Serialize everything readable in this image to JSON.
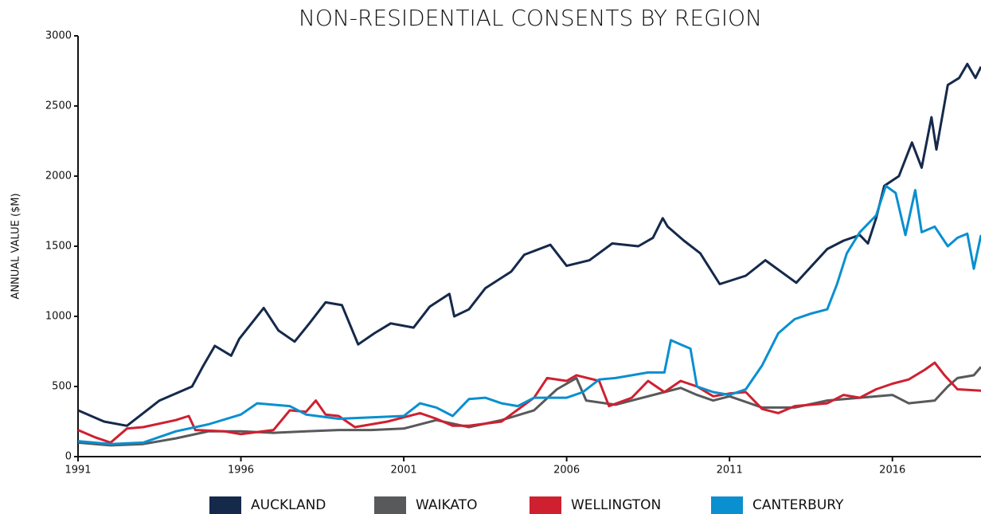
{
  "chart_data": {
    "type": "line",
    "title": "NON-RESIDENTIAL CONSENTS BY REGION",
    "y_label": "ANNUAL VALUE ($M)",
    "legend": "bottom",
    "xlim": [
      1991,
      2018.72
    ],
    "xticks": [
      1991,
      1996,
      2001,
      2006,
      2011,
      2016
    ],
    "ylim": [
      0,
      3000
    ],
    "yticks": [
      0,
      500,
      1000,
      1500,
      2000,
      2500,
      3000
    ],
    "series": [
      {
        "name": "AUCKLAND",
        "color": "#15294b",
        "x": [
          1991,
          1991.8,
          1992.5,
          1993.5,
          1994.5,
          1994.85,
          1995.2,
          1995.7,
          1995.95,
          1996.7,
          1997.15,
          1997.65,
          1998.1,
          1998.6,
          1999.1,
          1999.6,
          2000.1,
          2000.6,
          2001.3,
          2001.8,
          2002.4,
          2002.55,
          2003.0,
          2003.5,
          2004.3,
          2004.7,
          2005.5,
          2006.0,
          2006.7,
          2007.4,
          2008.2,
          2008.65,
          2008.95,
          2009.1,
          2009.6,
          2010.1,
          2010.7,
          2011.5,
          2012.1,
          2013.05,
          2014.0,
          2014.5,
          2015.0,
          2015.25,
          2015.5,
          2015.75,
          2016.2,
          2016.6,
          2016.9,
          2017.2,
          2017.35,
          2017.7,
          2018.05,
          2018.3,
          2018.55,
          2018.72
        ],
        "values": [
          330,
          250,
          220,
          400,
          500,
          650,
          790,
          720,
          840,
          1060,
          900,
          820,
          950,
          1100,
          1080,
          800,
          880,
          950,
          920,
          1070,
          1160,
          1000,
          1050,
          1200,
          1320,
          1440,
          1510,
          1360,
          1400,
          1520,
          1500,
          1560,
          1700,
          1640,
          1540,
          1450,
          1230,
          1290,
          1400,
          1240,
          1480,
          1540,
          1580,
          1520,
          1700,
          1930,
          2000,
          2240,
          2060,
          2420,
          2190,
          2650,
          2700,
          2800,
          2700,
          2780
        ]
      },
      {
        "name": "WAIKATO",
        "color": "#58595b",
        "x": [
          1991,
          1992,
          1993,
          1994,
          1995,
          1996,
          1997,
          1998,
          1999,
          2000,
          2001,
          2002,
          2003,
          2004,
          2005,
          2005.7,
          2006.3,
          2006.6,
          2007.5,
          2008,
          2009,
          2009.5,
          2010,
          2010.5,
          2011,
          2012,
          2013,
          2014,
          2015,
          2016,
          2016.5,
          2017.3,
          2017.7,
          2018,
          2018.5,
          2018.72
        ],
        "values": [
          100,
          80,
          90,
          130,
          180,
          180,
          170,
          180,
          190,
          190,
          200,
          260,
          210,
          260,
          330,
          480,
          560,
          400,
          370,
          400,
          460,
          490,
          440,
          400,
          430,
          350,
          350,
          400,
          420,
          440,
          380,
          400,
          500,
          560,
          580,
          640
        ]
      },
      {
        "name": "WELLINGTON",
        "color": "#cf2030",
        "x": [
          1991,
          1991.5,
          1992,
          1992.5,
          1993,
          1994,
          1994.4,
          1994.6,
          1995.5,
          1996,
          1997,
          1997.5,
          1998,
          1998.3,
          1998.6,
          1999,
          1999.5,
          2000,
          2000.5,
          2001,
          2001.5,
          2002,
          2002.5,
          2003,
          2004,
          2005,
          2005.4,
          2006,
          2006.3,
          2007,
          2007.3,
          2008,
          2008.5,
          2009,
          2009.5,
          2010,
          2010.5,
          2011,
          2011.5,
          2012,
          2012.5,
          2013,
          2014,
          2014.5,
          2015,
          2015.5,
          2016,
          2016.5,
          2017,
          2017.3,
          2017.6,
          2018,
          2018.72
        ],
        "values": [
          190,
          140,
          100,
          200,
          210,
          260,
          290,
          190,
          180,
          160,
          190,
          330,
          320,
          400,
          300,
          290,
          210,
          230,
          250,
          280,
          310,
          270,
          220,
          220,
          250,
          420,
          560,
          540,
          580,
          540,
          360,
          420,
          540,
          460,
          540,
          500,
          430,
          450,
          460,
          340,
          310,
          360,
          380,
          440,
          420,
          480,
          520,
          550,
          620,
          670,
          580,
          480,
          470
        ]
      },
      {
        "name": "CANTERBURY",
        "color": "#0a8fd0",
        "x": [
          1991,
          1992,
          1993,
          1994,
          1995,
          1996,
          1996.5,
          1997.5,
          1998,
          1999,
          2000,
          2001,
          2001.5,
          2002,
          2002.5,
          2003,
          2003.5,
          2004,
          2004.5,
          2005,
          2006,
          2006.5,
          2007,
          2007.5,
          2008,
          2008.5,
          2009,
          2009.2,
          2009.5,
          2009.8,
          2010,
          2010.5,
          2011,
          2011.5,
          2012,
          2012.5,
          2013,
          2013.5,
          2014,
          2014.3,
          2014.6,
          2015,
          2015.5,
          2015.8,
          2016.1,
          2016.4,
          2016.7,
          2016.9,
          2017.3,
          2017.7,
          2018,
          2018.3,
          2018.5,
          2018.72
        ],
        "values": [
          110,
          90,
          100,
          180,
          230,
          300,
          380,
          360,
          300,
          270,
          280,
          290,
          380,
          350,
          290,
          410,
          420,
          380,
          360,
          420,
          420,
          460,
          550,
          560,
          580,
          600,
          600,
          830,
          800,
          770,
          500,
          460,
          440,
          480,
          650,
          880,
          980,
          1020,
          1050,
          1230,
          1450,
          1600,
          1720,
          1930,
          1880,
          1580,
          1900,
          1600,
          1640,
          1500,
          1560,
          1590,
          1340,
          1580
        ]
      }
    ]
  }
}
